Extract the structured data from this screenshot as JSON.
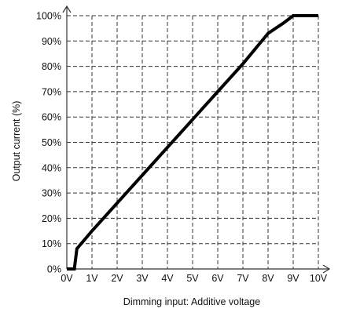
{
  "chart_data": {
    "type": "line",
    "title": "",
    "xlabel": "Dimming input: Additive voltage",
    "ylabel": "Output current (%)",
    "x_tick_labels": [
      "0V",
      "1V",
      "2V",
      "3V",
      "4V",
      "5V",
      "6V",
      "7V",
      "8V",
      "9V",
      "10V"
    ],
    "y_tick_labels": [
      "0%",
      "10%",
      "20%",
      "30%",
      "40%",
      "50%",
      "60%",
      "70%",
      "80%",
      "90%",
      "100%"
    ],
    "xlim": [
      0,
      10
    ],
    "ylim": [
      0,
      100
    ],
    "grid": true,
    "grid_style": "dashed",
    "series": [
      {
        "x": [
          0,
          0.3,
          0.4,
          1,
          2,
          3,
          4,
          5,
          6,
          7,
          8,
          8.6,
          9,
          10
        ],
        "y": [
          0,
          0,
          8,
          15,
          26,
          37,
          48,
          59,
          70,
          81,
          93,
          97,
          100,
          100
        ]
      }
    ]
  },
  "colors": {
    "line": "#000000",
    "grid": "#333333",
    "axis": "#333333",
    "background": "#ffffff"
  }
}
